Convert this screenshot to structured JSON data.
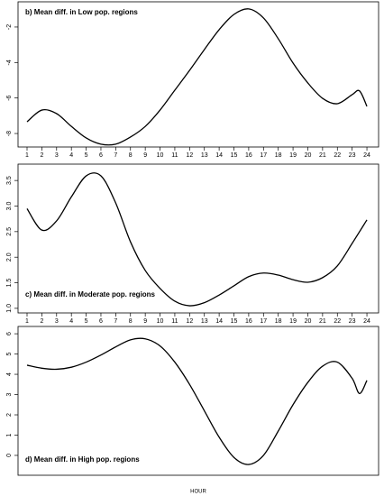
{
  "chart_data": [
    {
      "type": "line",
      "title": "b) Mean diff. in Low pop. regions",
      "x": [
        1,
        2,
        3,
        4,
        5,
        6,
        7,
        8,
        9,
        10,
        11,
        12,
        13,
        14,
        15,
        16,
        17,
        18,
        19,
        20,
        21,
        22,
        23,
        23.5,
        24
      ],
      "series": [
        {
          "color": "#000000",
          "values": [
            -7.34,
            -6.68,
            -6.88,
            -7.6,
            -8.25,
            -8.6,
            -8.6,
            -8.2,
            -7.6,
            -6.68,
            -5.56,
            -4.44,
            -3.27,
            -2.15,
            -1.29,
            -0.98,
            -1.49,
            -2.66,
            -4.03,
            -5.15,
            -6.02,
            -6.32,
            -5.81,
            -5.6,
            -6.47
          ]
        }
      ],
      "xlim": [
        0.39,
        24.79
      ],
      "xticks": [
        1,
        2,
        3,
        4,
        5,
        6,
        7,
        8,
        9,
        10,
        11,
        12,
        13,
        14,
        15,
        16,
        17,
        18,
        19,
        20,
        21,
        22,
        23,
        24
      ],
      "ylim": [
        -8.76,
        -0.58
      ],
      "yticks": [
        -8,
        -6,
        -4,
        -2
      ]
    },
    {
      "type": "line",
      "title": "c) Mean diff. in Moderate pop. regions",
      "x": [
        1,
        2,
        3,
        4,
        5,
        6,
        7,
        8,
        9,
        10,
        11,
        12,
        13,
        14,
        15,
        16,
        17,
        18,
        19,
        20,
        21,
        22,
        23,
        24
      ],
      "series": [
        {
          "color": "#000000",
          "values": [
            2.95,
            2.53,
            2.71,
            3.18,
            3.59,
            3.59,
            3.06,
            2.3,
            1.74,
            1.39,
            1.14,
            1.05,
            1.11,
            1.26,
            1.44,
            1.62,
            1.69,
            1.65,
            1.56,
            1.51,
            1.6,
            1.83,
            2.27,
            2.73
          ]
        }
      ],
      "xlim": [
        0.39,
        24.79
      ],
      "xticks": [
        1,
        2,
        3,
        4,
        5,
        6,
        7,
        8,
        9,
        10,
        11,
        12,
        13,
        14,
        15,
        16,
        17,
        18,
        19,
        20,
        21,
        22,
        23,
        24
      ],
      "ylim": [
        0.91,
        3.82
      ],
      "yticks": [
        {
          "value": 1,
          "label": "1.0"
        },
        1.5,
        {
          "value": 2,
          "label": "2.0"
        },
        2.5,
        {
          "value": 3,
          "label": "3.0"
        },
        3.5
      ]
    },
    {
      "type": "line",
      "title": "d) Mean diff. in High pop. regions",
      "x_label": "HOUR",
      "x": [
        1,
        2,
        3,
        4,
        5,
        6,
        7,
        8,
        9,
        10,
        11,
        12,
        13,
        14,
        15,
        16,
        17,
        18,
        19,
        20,
        21,
        22,
        23,
        23.5,
        24
      ],
      "series": [
        {
          "color": "#000000",
          "values": [
            4.45,
            4.3,
            4.25,
            4.35,
            4.6,
            4.95,
            5.35,
            5.7,
            5.75,
            5.4,
            4.6,
            3.5,
            2.2,
            0.9,
            -0.1,
            -0.45,
            0,
            1.2,
            2.5,
            3.6,
            4.4,
            4.6,
            3.8,
            3.05,
            3.7
          ]
        }
      ],
      "xlim": [
        0.39,
        24.79
      ],
      "ylim": [
        -0.98,
        6.36
      ],
      "yticks": [
        0,
        1,
        2,
        3,
        4,
        5,
        6
      ]
    }
  ]
}
